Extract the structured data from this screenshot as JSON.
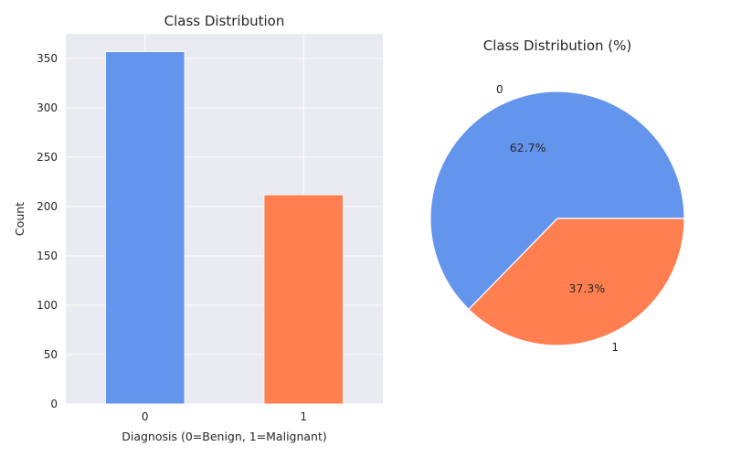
{
  "chart_data": [
    {
      "type": "bar",
      "title": "Class Distribution",
      "xlabel": "Diagnosis (0=Benign, 1=Malignant)",
      "ylabel": "Count",
      "categories": [
        "0",
        "1"
      ],
      "values": [
        357,
        212
      ],
      "yticks": [
        "0",
        "50",
        "100",
        "150",
        "200",
        "250",
        "300",
        "350"
      ],
      "ylim": [
        0,
        375
      ],
      "grid": true,
      "colors": [
        "#6495ED",
        "#FF7F50"
      ]
    },
    {
      "type": "pie",
      "title": "Class Distribution (%)",
      "labels": [
        "0",
        "1"
      ],
      "values": [
        62.7,
        37.3
      ],
      "percent_labels": [
        "62.7%",
        "37.3%"
      ],
      "colors": [
        "#6495ED",
        "#FF7F50"
      ]
    }
  ]
}
